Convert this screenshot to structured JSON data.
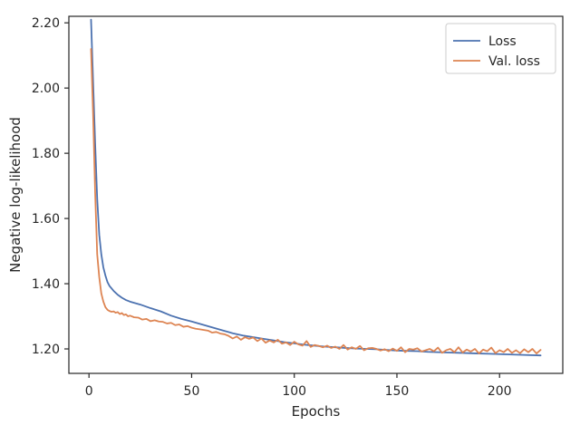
{
  "chart_data": {
    "type": "line",
    "title": "",
    "xlabel": "Epochs",
    "ylabel": "Negative log-likelihood",
    "xlim": [
      -9.8,
      230.8
    ],
    "ylim": [
      1.125,
      2.22
    ],
    "x_ticks": [
      {
        "value": 0,
        "label": "0"
      },
      {
        "value": 50,
        "label": "50"
      },
      {
        "value": 100,
        "label": "100"
      },
      {
        "value": 150,
        "label": "150"
      },
      {
        "value": 200,
        "label": "200"
      }
    ],
    "y_ticks": [
      {
        "value": 1.2,
        "label": "1.20"
      },
      {
        "value": 1.4,
        "label": "1.40"
      },
      {
        "value": 1.6,
        "label": "1.60"
      },
      {
        "value": 1.8,
        "label": "1.80"
      },
      {
        "value": 2.0,
        "label": "2.00"
      },
      {
        "value": 2.2,
        "label": "2.20"
      }
    ],
    "grid": false,
    "legend_position": "top-right",
    "series": [
      {
        "name": "Loss",
        "color": "#4c72b0",
        "x": [
          1,
          2,
          3,
          4,
          5,
          6,
          7,
          8,
          9,
          10,
          12,
          14,
          16,
          18,
          20,
          25,
          30,
          35,
          40,
          45,
          50,
          55,
          60,
          65,
          70,
          75,
          80,
          85,
          90,
          95,
          100,
          105,
          110,
          115,
          120,
          125,
          130,
          135,
          140,
          145,
          150,
          155,
          160,
          165,
          170,
          175,
          180,
          185,
          190,
          195,
          200,
          205,
          210,
          215,
          220
        ],
        "y": [
          2.21,
          2.02,
          1.83,
          1.66,
          1.55,
          1.49,
          1.45,
          1.425,
          1.405,
          1.393,
          1.378,
          1.366,
          1.357,
          1.35,
          1.345,
          1.336,
          1.325,
          1.315,
          1.302,
          1.292,
          1.284,
          1.275,
          1.266,
          1.257,
          1.248,
          1.241,
          1.236,
          1.231,
          1.226,
          1.221,
          1.217,
          1.213,
          1.21,
          1.207,
          1.205,
          1.203,
          1.201,
          1.2,
          1.199,
          1.197,
          1.195,
          1.194,
          1.193,
          1.191,
          1.19,
          1.189,
          1.188,
          1.187,
          1.186,
          1.185,
          1.184,
          1.183,
          1.182,
          1.181,
          1.18
        ]
      },
      {
        "name": "Val. loss",
        "color": "#dd8452",
        "x": [
          1,
          2,
          3,
          4,
          5,
          6,
          7,
          8,
          9,
          10,
          11,
          12,
          13,
          14,
          15,
          16,
          17,
          18,
          19,
          20,
          22,
          24,
          26,
          28,
          30,
          32,
          34,
          36,
          38,
          40,
          42,
          44,
          46,
          48,
          50,
          52,
          54,
          56,
          58,
          60,
          62,
          64,
          66,
          68,
          70,
          72,
          74,
          76,
          78,
          80,
          82,
          84,
          86,
          88,
          90,
          92,
          94,
          96,
          98,
          100,
          102,
          104,
          106,
          108,
          110,
          112,
          114,
          116,
          118,
          120,
          122,
          124,
          126,
          128,
          130,
          132,
          134,
          136,
          138,
          140,
          142,
          144,
          146,
          148,
          150,
          152,
          154,
          156,
          158,
          160,
          162,
          164,
          166,
          168,
          170,
          172,
          174,
          176,
          178,
          180,
          182,
          184,
          186,
          188,
          190,
          192,
          194,
          196,
          198,
          200,
          202,
          204,
          206,
          208,
          210,
          212,
          214,
          216,
          218,
          220
        ],
        "y": [
          2.12,
          1.92,
          1.68,
          1.49,
          1.42,
          1.37,
          1.345,
          1.328,
          1.32,
          1.316,
          1.314,
          1.315,
          1.311,
          1.313,
          1.307,
          1.31,
          1.304,
          1.306,
          1.3,
          1.302,
          1.297,
          1.296,
          1.29,
          1.292,
          1.285,
          1.288,
          1.284,
          1.283,
          1.278,
          1.28,
          1.273,
          1.275,
          1.268,
          1.27,
          1.265,
          1.262,
          1.26,
          1.258,
          1.256,
          1.25,
          1.252,
          1.247,
          1.245,
          1.24,
          1.232,
          1.238,
          1.228,
          1.236,
          1.231,
          1.235,
          1.224,
          1.232,
          1.219,
          1.226,
          1.22,
          1.228,
          1.216,
          1.22,
          1.212,
          1.222,
          1.214,
          1.21,
          1.224,
          1.206,
          1.212,
          1.209,
          1.205,
          1.21,
          1.203,
          1.207,
          1.2,
          1.212,
          1.198,
          1.205,
          1.2,
          1.209,
          1.196,
          1.202,
          1.203,
          1.2,
          1.195,
          1.199,
          1.193,
          1.201,
          1.194,
          1.205,
          1.19,
          1.2,
          1.198,
          1.202,
          1.192,
          1.196,
          1.2,
          1.193,
          1.204,
          1.188,
          1.196,
          1.2,
          1.19,
          1.205,
          1.189,
          1.198,
          1.192,
          1.2,
          1.186,
          1.198,
          1.193,
          1.204,
          1.187,
          1.196,
          1.19,
          1.2,
          1.188,
          1.196,
          1.187,
          1.199,
          1.19,
          1.2,
          1.186,
          1.197
        ]
      }
    ]
  }
}
